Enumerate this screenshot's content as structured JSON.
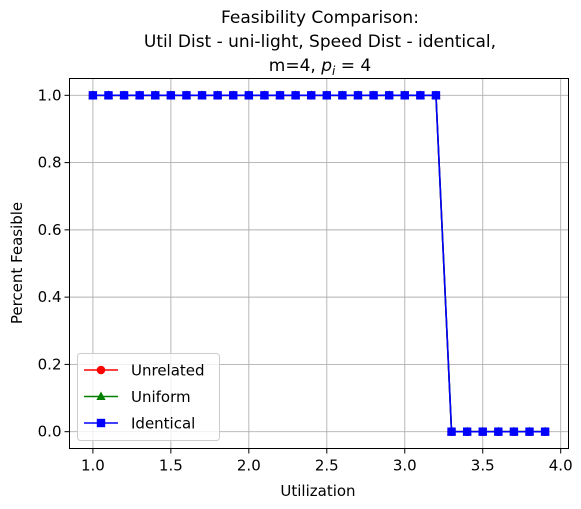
{
  "chart_data": {
    "type": "line",
    "title_lines": [
      "Feasibility Comparison:",
      "Util Dist - uni-light, Speed Dist - identical,"
    ],
    "title_line3": {
      "prefix": "m=4, ",
      "var": "p",
      "sub": "i",
      "suffix": " = 4"
    },
    "xlabel": "Utilization",
    "ylabel": "Percent Feasible",
    "xlim": [
      0.85,
      4.05
    ],
    "ylim": [
      -0.05,
      1.05
    ],
    "xticks": [
      1.0,
      1.5,
      2.0,
      2.5,
      3.0,
      3.5,
      4.0
    ],
    "xtick_labels": [
      "1.0",
      "1.5",
      "2.0",
      "2.5",
      "3.0",
      "3.5",
      "4.0"
    ],
    "yticks": [
      0.0,
      0.2,
      0.4,
      0.6,
      0.8,
      1.0
    ],
    "ytick_labels": [
      "0.0",
      "0.2",
      "0.4",
      "0.6",
      "0.8",
      "1.0"
    ],
    "grid": true,
    "legend_position": "lower-left",
    "x": [
      1.0,
      1.1,
      1.2,
      1.3,
      1.4,
      1.5,
      1.6,
      1.7,
      1.8,
      1.9,
      2.0,
      2.1,
      2.2,
      2.3,
      2.4,
      2.5,
      2.6,
      2.7,
      2.8,
      2.9,
      3.0,
      3.1,
      3.2,
      3.3,
      3.4,
      3.5,
      3.6,
      3.7,
      3.8,
      3.9
    ],
    "series": [
      {
        "name": "Unrelated",
        "color": "#ff0000",
        "marker": "circle",
        "values": [
          1,
          1,
          1,
          1,
          1,
          1,
          1,
          1,
          1,
          1,
          1,
          1,
          1,
          1,
          1,
          1,
          1,
          1,
          1,
          1,
          1,
          1,
          1,
          0,
          0,
          0,
          0,
          0,
          0,
          0
        ]
      },
      {
        "name": "Uniform",
        "color": "#008000",
        "marker": "triangle",
        "values": [
          1,
          1,
          1,
          1,
          1,
          1,
          1,
          1,
          1,
          1,
          1,
          1,
          1,
          1,
          1,
          1,
          1,
          1,
          1,
          1,
          1,
          1,
          1,
          0,
          0,
          0,
          0,
          0,
          0,
          0
        ]
      },
      {
        "name": "Identical",
        "color": "#0000ff",
        "marker": "square",
        "values": [
          1,
          1,
          1,
          1,
          1,
          1,
          1,
          1,
          1,
          1,
          1,
          1,
          1,
          1,
          1,
          1,
          1,
          1,
          1,
          1,
          1,
          1,
          1,
          0,
          0,
          0,
          0,
          0,
          0,
          0
        ]
      }
    ]
  }
}
